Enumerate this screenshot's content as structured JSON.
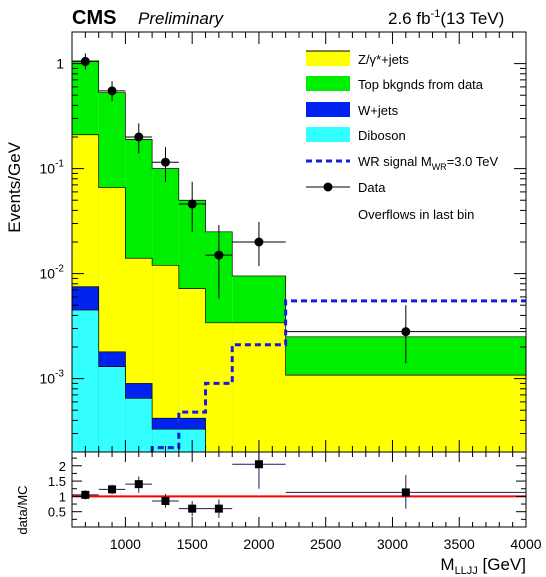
{
  "header": {
    "experiment": "CMS",
    "status": "Preliminary",
    "lumi_main": "2.6 fb",
    "lumi_sup": "-1",
    "lumi_energy": "(13 TeV)"
  },
  "chart_data": [
    {
      "type": "area",
      "name": "main",
      "ylabel": "Events/GeV",
      "yscale": "log",
      "xlim": [
        600,
        4000
      ],
      "ylim": [
        0.0002,
        2
      ],
      "yticks": [
        {
          "value": 1,
          "base": "1",
          "exp": ""
        },
        {
          "value": 0.1,
          "base": "10",
          "exp": "-1"
        },
        {
          "value": 0.01,
          "base": "10",
          "exp": "-2"
        },
        {
          "value": 0.001,
          "base": "10",
          "exp": "-3"
        }
      ],
      "bin_edges": [
        600,
        800,
        1000,
        1200,
        1400,
        1600,
        1800,
        2200,
        4000
      ],
      "stack": [
        {
          "name": "Diboson",
          "color": "#33ffff",
          "values": [
            0.0045,
            0.0013,
            0.00065,
            0.00033,
            0.00033,
            0.0002,
            0.0002,
            0.0002
          ]
        },
        {
          "name": "W+jets",
          "color": "#0022ee",
          "values": [
            0.0075,
            0.0018,
            0.0009,
            0.00042,
            0.00042,
            0.0002,
            0.0002,
            0.0002
          ]
        },
        {
          "name": "Z/γ*+jets",
          "color": "#ffff00",
          "values": [
            0.21,
            0.066,
            0.014,
            0.012,
            0.0072,
            0.0034,
            0.0034,
            0.00108
          ]
        },
        {
          "name": "Top bkgnds from data",
          "color": "#00ee00",
          "values": [
            1.06,
            0.53,
            0.19,
            0.1,
            0.05,
            0.025,
            0.0095,
            0.0025
          ]
        }
      ],
      "signal": {
        "name": "WR signal M",
        "name_sub": "WR",
        "name_tail": "=3.0 TeV",
        "color": "#1a1adb",
        "bin_edges": [
          1200,
          1400,
          1600,
          1800,
          2200,
          4000
        ],
        "values": [
          0.00022,
          0.00048,
          0.0009,
          0.0021,
          0.0055
        ]
      },
      "data": {
        "name": "Data",
        "x": [
          700,
          900,
          1100,
          1300,
          1500,
          1700,
          2000,
          3100
        ],
        "xerr": [
          100,
          100,
          100,
          100,
          100,
          100,
          200,
          900
        ],
        "y": [
          1.05,
          0.55,
          0.2,
          0.115,
          0.046,
          0.015,
          0.02,
          0.0028
        ],
        "ylow": [
          0.88,
          0.44,
          0.14,
          0.075,
          0.025,
          0.0058,
          0.0118,
          0.0014
        ],
        "yhigh": [
          1.25,
          0.68,
          0.27,
          0.16,
          0.075,
          0.029,
          0.031,
          0.005
        ]
      },
      "note": "Overflows in last bin",
      "legend_position": "top-right"
    },
    {
      "type": "scatter",
      "name": "ratio",
      "ylabel": "data/MC",
      "xlabel": "M",
      "xlabel_sub": "LLJJ",
      "xlabel_unit": " [GeV]",
      "xlim": [
        600,
        4000
      ],
      "ylim": [
        0,
        2.45
      ],
      "yticks": [
        "0.5",
        "1",
        "1.5",
        "2"
      ],
      "xticks": [
        "1000",
        "1500",
        "2000",
        "2500",
        "3000",
        "3500",
        "4000"
      ],
      "reference_line": 1,
      "reference_color": "#ff0000",
      "points": {
        "x": [
          700,
          900,
          1100,
          1300,
          1500,
          1700,
          2000,
          3100
        ],
        "xerr": [
          100,
          100,
          100,
          100,
          100,
          100,
          200,
          900
        ],
        "y": [
          1.05,
          1.23,
          1.4,
          0.85,
          0.6,
          0.6,
          2.05,
          1.13
        ],
        "ylow": [
          0.9,
          1.07,
          1.12,
          0.63,
          0.35,
          0.3,
          1.25,
          0.6
        ],
        "yhigh": [
          1.2,
          1.38,
          1.65,
          1.08,
          0.85,
          0.9,
          2.45,
          1.7
        ]
      }
    }
  ]
}
